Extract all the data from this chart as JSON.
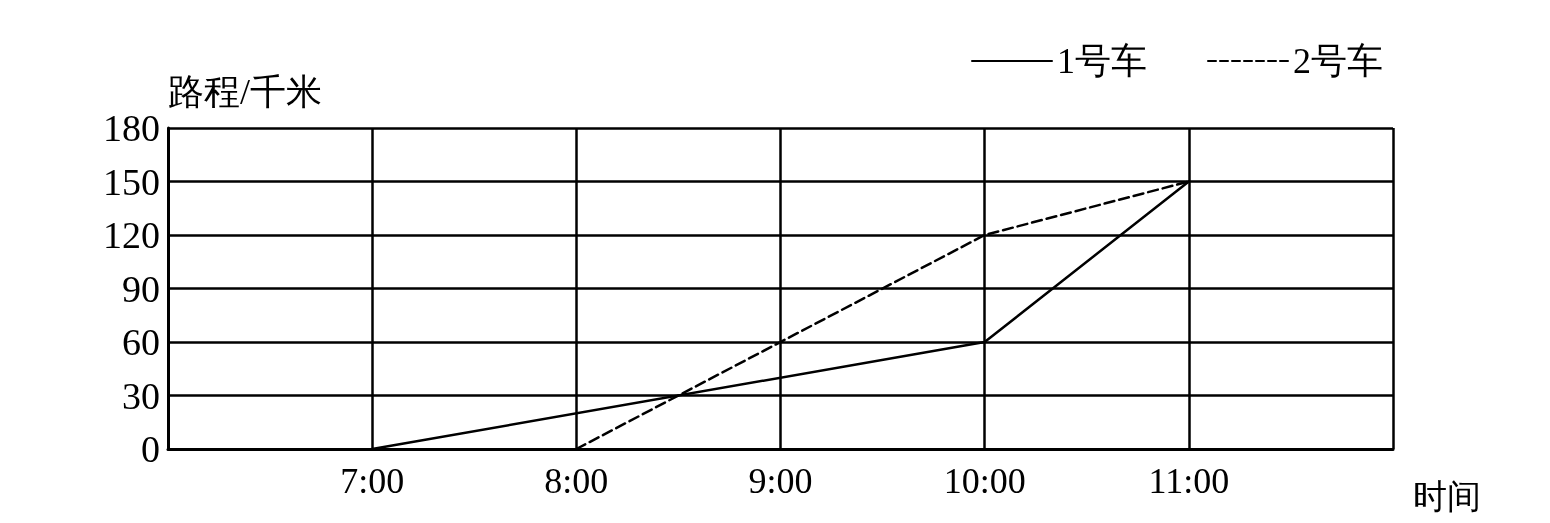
{
  "chart_data": {
    "type": "line",
    "ylabel": "路程/千米",
    "xlabel": "时间",
    "xlim": [
      6,
      12
    ],
    "xticks": [
      {
        "value": 6,
        "label": null
      },
      {
        "value": 7,
        "label": "7:00"
      },
      {
        "value": 8,
        "label": "8:00"
      },
      {
        "value": 9,
        "label": "9:00"
      },
      {
        "value": 10,
        "label": "10:00"
      },
      {
        "value": 11,
        "label": "11:00"
      },
      {
        "value": 12,
        "label": null
      }
    ],
    "ylim": [
      0,
      180
    ],
    "yticks": [
      0,
      30,
      60,
      90,
      120,
      150,
      180
    ],
    "grid": true,
    "legend": "top right",
    "marker": "none",
    "series": [
      {
        "name": "1号车",
        "color": "#000000",
        "line_style": "solid",
        "x": [
          7,
          10,
          11
        ],
        "values": [
          0,
          60,
          150
        ]
      },
      {
        "name": "2号车",
        "color": "#000000",
        "line_style": "dashed",
        "x": [
          8,
          10,
          11
        ],
        "values": [
          0,
          120,
          150
        ]
      }
    ]
  }
}
